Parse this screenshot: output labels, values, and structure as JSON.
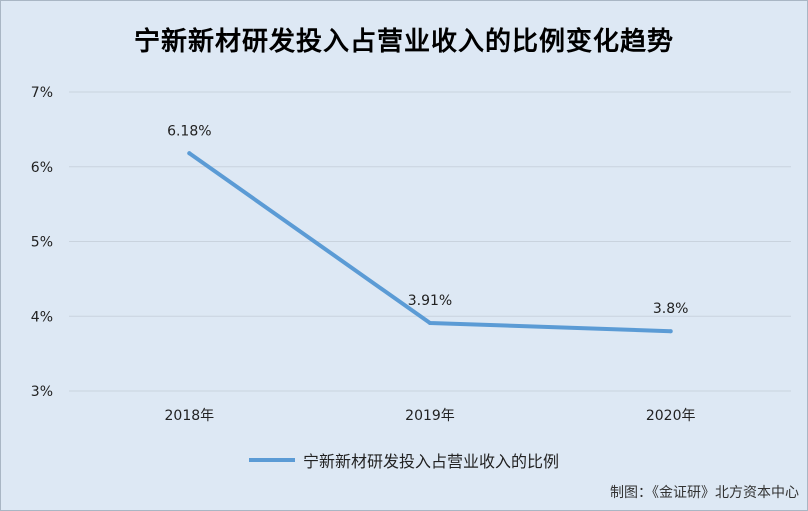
{
  "chart_data": {
    "type": "line",
    "title": "宁新新材研发投入占营业收入的比例变化趋势",
    "categories": [
      "2018年",
      "2019年",
      "2020年"
    ],
    "series": [
      {
        "name": "宁新新材研发投入占营业收入的比例",
        "values": [
          6.18,
          3.91,
          3.8
        ],
        "labels": [
          "6.18%",
          "3.91%",
          "3.8%"
        ],
        "color": "#5b9bd5"
      }
    ],
    "yticks": [
      "3%",
      "4%",
      "5%",
      "6%",
      "7%"
    ],
    "ylim": [
      3,
      7
    ],
    "grid": true,
    "legend": "bottom"
  },
  "source": "制图：《金证研》北方资本中心"
}
